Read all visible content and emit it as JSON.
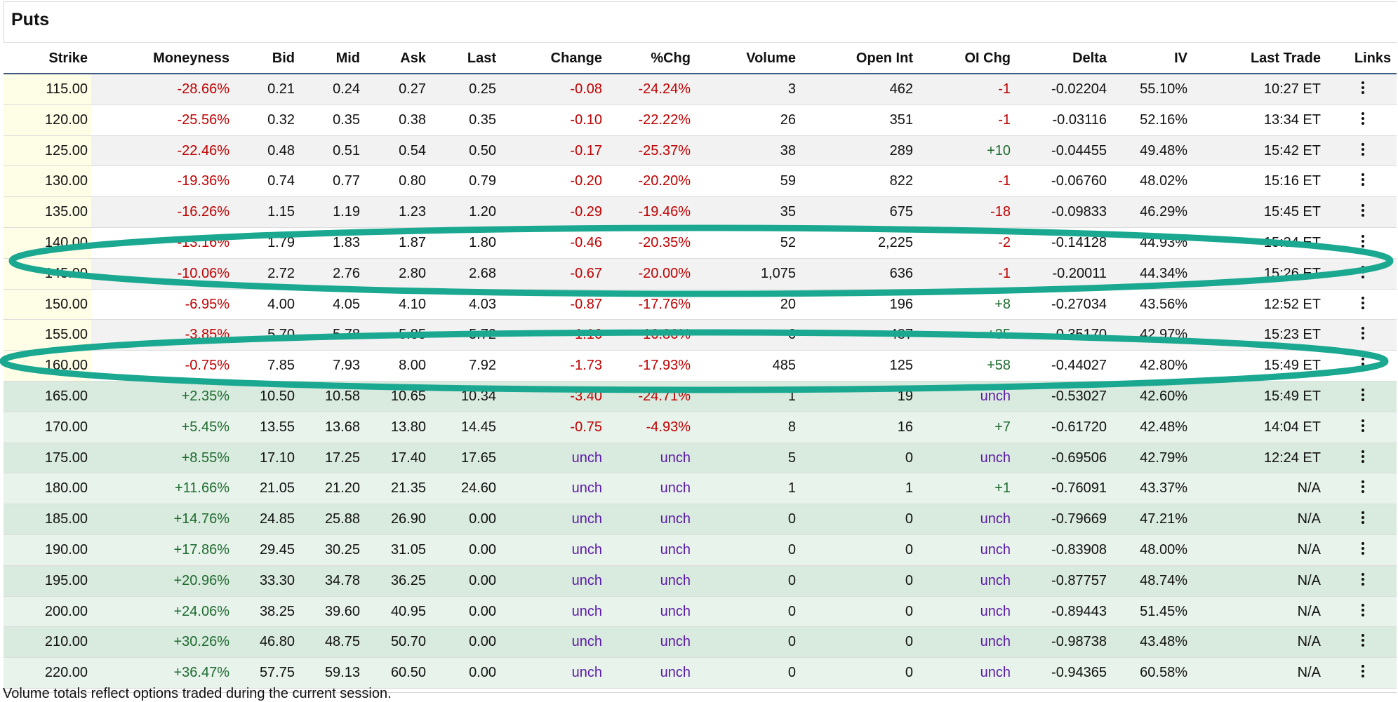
{
  "title": "Puts",
  "columns": [
    "Strike",
    "Moneyness",
    "Bid",
    "Mid",
    "Ask",
    "Last",
    "Change",
    "%Chg",
    "Volume",
    "Open Int",
    "OI Chg",
    "Delta",
    "IV",
    "Last Trade",
    "Links"
  ],
  "rows": [
    {
      "strike": "115.00",
      "moneyness": "-28.66%",
      "bid": "0.21",
      "mid": "0.24",
      "ask": "0.27",
      "last": "0.25",
      "change": "-0.08",
      "pctchg": "-24.24%",
      "volume": "3",
      "openint": "462",
      "oichg": "-1",
      "delta": "-0.02204",
      "iv": "55.10%",
      "lasttrade": "10:27 ET",
      "zone": "itm"
    },
    {
      "strike": "120.00",
      "moneyness": "-25.56%",
      "bid": "0.32",
      "mid": "0.35",
      "ask": "0.38",
      "last": "0.35",
      "change": "-0.10",
      "pctchg": "-22.22%",
      "volume": "26",
      "openint": "351",
      "oichg": "-1",
      "delta": "-0.03116",
      "iv": "52.16%",
      "lasttrade": "13:34 ET",
      "zone": "itm"
    },
    {
      "strike": "125.00",
      "moneyness": "-22.46%",
      "bid": "0.48",
      "mid": "0.51",
      "ask": "0.54",
      "last": "0.50",
      "change": "-0.17",
      "pctchg": "-25.37%",
      "volume": "38",
      "openint": "289",
      "oichg": "+10",
      "delta": "-0.04455",
      "iv": "49.48%",
      "lasttrade": "15:42 ET",
      "zone": "itm"
    },
    {
      "strike": "130.00",
      "moneyness": "-19.36%",
      "bid": "0.74",
      "mid": "0.77",
      "ask": "0.80",
      "last": "0.79",
      "change": "-0.20",
      "pctchg": "-20.20%",
      "volume": "59",
      "openint": "822",
      "oichg": "-1",
      "delta": "-0.06760",
      "iv": "48.02%",
      "lasttrade": "15:16 ET",
      "zone": "itm"
    },
    {
      "strike": "135.00",
      "moneyness": "-16.26%",
      "bid": "1.15",
      "mid": "1.19",
      "ask": "1.23",
      "last": "1.20",
      "change": "-0.29",
      "pctchg": "-19.46%",
      "volume": "35",
      "openint": "675",
      "oichg": "-18",
      "delta": "-0.09833",
      "iv": "46.29%",
      "lasttrade": "15:45 ET",
      "zone": "itm"
    },
    {
      "strike": "140.00",
      "moneyness": "-13.16%",
      "bid": "1.79",
      "mid": "1.83",
      "ask": "1.87",
      "last": "1.80",
      "change": "-0.46",
      "pctchg": "-20.35%",
      "volume": "52",
      "openint": "2,225",
      "oichg": "-2",
      "delta": "-0.14128",
      "iv": "44.93%",
      "lasttrade": "15:34 ET",
      "zone": "itm"
    },
    {
      "strike": "145.00",
      "moneyness": "-10.06%",
      "bid": "2.72",
      "mid": "2.76",
      "ask": "2.80",
      "last": "2.68",
      "change": "-0.67",
      "pctchg": "-20.00%",
      "volume": "1,075",
      "openint": "636",
      "oichg": "-1",
      "delta": "-0.20011",
      "iv": "44.34%",
      "lasttrade": "15:26 ET",
      "zone": "itm"
    },
    {
      "strike": "150.00",
      "moneyness": "-6.95%",
      "bid": "4.00",
      "mid": "4.05",
      "ask": "4.10",
      "last": "4.03",
      "change": "-0.87",
      "pctchg": "-17.76%",
      "volume": "20",
      "openint": "196",
      "oichg": "+8",
      "delta": "-0.27034",
      "iv": "43.56%",
      "lasttrade": "12:52 ET",
      "zone": "itm"
    },
    {
      "strike": "155.00",
      "moneyness": "-3.85%",
      "bid": "5.70",
      "mid": "5.78",
      "ask": "5.85",
      "last": "5.72",
      "change": "-1.16",
      "pctchg": "-16.86%",
      "volume": "6",
      "openint": "487",
      "oichg": "+35",
      "delta": "-0.35170",
      "iv": "42.97%",
      "lasttrade": "15:23 ET",
      "zone": "itm"
    },
    {
      "strike": "160.00",
      "moneyness": "-0.75%",
      "bid": "7.85",
      "mid": "7.93",
      "ask": "8.00",
      "last": "7.92",
      "change": "-1.73",
      "pctchg": "-17.93%",
      "volume": "485",
      "openint": "125",
      "oichg": "+58",
      "delta": "-0.44027",
      "iv": "42.80%",
      "lasttrade": "15:49 ET",
      "zone": "itm"
    },
    {
      "strike": "165.00",
      "moneyness": "+2.35%",
      "bid": "10.50",
      "mid": "10.58",
      "ask": "10.65",
      "last": "10.34",
      "change": "-3.40",
      "pctchg": "-24.71%",
      "volume": "1",
      "openint": "19",
      "oichg": "unch",
      "delta": "-0.53027",
      "iv": "42.60%",
      "lasttrade": "15:49 ET",
      "zone": "otm"
    },
    {
      "strike": "170.00",
      "moneyness": "+5.45%",
      "bid": "13.55",
      "mid": "13.68",
      "ask": "13.80",
      "last": "14.45",
      "change": "-0.75",
      "pctchg": "-4.93%",
      "volume": "8",
      "openint": "16",
      "oichg": "+7",
      "delta": "-0.61720",
      "iv": "42.48%",
      "lasttrade": "14:04 ET",
      "zone": "otm"
    },
    {
      "strike": "175.00",
      "moneyness": "+8.55%",
      "bid": "17.10",
      "mid": "17.25",
      "ask": "17.40",
      "last": "17.65",
      "change": "unch",
      "pctchg": "unch",
      "volume": "5",
      "openint": "0",
      "oichg": "unch",
      "delta": "-0.69506",
      "iv": "42.79%",
      "lasttrade": "12:24 ET",
      "zone": "otm"
    },
    {
      "strike": "180.00",
      "moneyness": "+11.66%",
      "bid": "21.05",
      "mid": "21.20",
      "ask": "21.35",
      "last": "24.60",
      "change": "unch",
      "pctchg": "unch",
      "volume": "1",
      "openint": "1",
      "oichg": "+1",
      "delta": "-0.76091",
      "iv": "43.37%",
      "lasttrade": "N/A",
      "zone": "otm"
    },
    {
      "strike": "185.00",
      "moneyness": "+14.76%",
      "bid": "24.85",
      "mid": "25.88",
      "ask": "26.90",
      "last": "0.00",
      "change": "unch",
      "pctchg": "unch",
      "volume": "0",
      "openint": "0",
      "oichg": "unch",
      "delta": "-0.79669",
      "iv": "47.21%",
      "lasttrade": "N/A",
      "zone": "otm"
    },
    {
      "strike": "190.00",
      "moneyness": "+17.86%",
      "bid": "29.45",
      "mid": "30.25",
      "ask": "31.05",
      "last": "0.00",
      "change": "unch",
      "pctchg": "unch",
      "volume": "0",
      "openint": "0",
      "oichg": "unch",
      "delta": "-0.83908",
      "iv": "48.00%",
      "lasttrade": "N/A",
      "zone": "otm"
    },
    {
      "strike": "195.00",
      "moneyness": "+20.96%",
      "bid": "33.30",
      "mid": "34.78",
      "ask": "36.25",
      "last": "0.00",
      "change": "unch",
      "pctchg": "unch",
      "volume": "0",
      "openint": "0",
      "oichg": "unch",
      "delta": "-0.87757",
      "iv": "48.74%",
      "lasttrade": "N/A",
      "zone": "otm"
    },
    {
      "strike": "200.00",
      "moneyness": "+24.06%",
      "bid": "38.25",
      "mid": "39.60",
      "ask": "40.95",
      "last": "0.00",
      "change": "unch",
      "pctchg": "unch",
      "volume": "0",
      "openint": "0",
      "oichg": "unch",
      "delta": "-0.89443",
      "iv": "51.45%",
      "lasttrade": "N/A",
      "zone": "otm"
    },
    {
      "strike": "210.00",
      "moneyness": "+30.26%",
      "bid": "46.80",
      "mid": "48.75",
      "ask": "50.70",
      "last": "0.00",
      "change": "unch",
      "pctchg": "unch",
      "volume": "0",
      "openint": "0",
      "oichg": "unch",
      "delta": "-0.98738",
      "iv": "43.48%",
      "lasttrade": "N/A",
      "zone": "otm"
    },
    {
      "strike": "220.00",
      "moneyness": "+36.47%",
      "bid": "57.75",
      "mid": "59.13",
      "ask": "60.50",
      "last": "0.00",
      "change": "unch",
      "pctchg": "unch",
      "volume": "0",
      "openint": "0",
      "oichg": "unch",
      "delta": "-0.94365",
      "iv": "60.58%",
      "lasttrade": "N/A",
      "zone": "otm"
    }
  ],
  "footnote": "Volume totals reflect options traded during the current session.",
  "colors": {
    "negative": "#c00000",
    "positive": "#1d6b2e",
    "unch": "#5b1aa8",
    "annotation": "#1aa890",
    "header_rule": "#3d5a80"
  }
}
